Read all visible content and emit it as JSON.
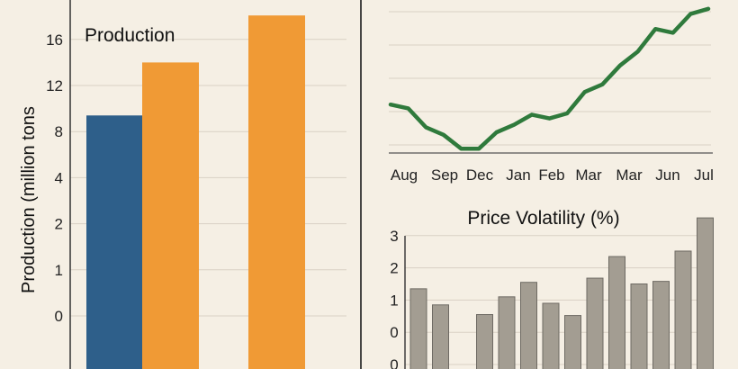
{
  "colors": {
    "background": "#f5efe4",
    "grid": "#d9d1c4",
    "bar_blue": "#2e5f8a",
    "bar_orange": "#f09a35",
    "line_green": "#2f7a3c",
    "bar_gray": "#a39d92",
    "bar_gray_edge": "#6e6a63",
    "divider": "#333333"
  },
  "chart_data": [
    {
      "id": "production",
      "type": "bar",
      "title": "Production",
      "ylabel": "Production (million tons",
      "y_tick_labels": [
        "0",
        "1",
        "2",
        "4",
        "8",
        "12",
        "16"
      ],
      "y_tick_levels": [
        0,
        1,
        2,
        3,
        4,
        5,
        6
      ],
      "bars": [
        {
          "level": 4.35,
          "color": "blue"
        },
        {
          "level": 5.5,
          "color": "orange"
        },
        {
          "level": 6.52,
          "color": "orange"
        }
      ],
      "grid": true
    },
    {
      "id": "price-line",
      "type": "line",
      "x_tick_labels": [
        "Aug",
        "Sep",
        "Dec",
        "Jan",
        "Feb",
        "Mar",
        "Mar",
        "Jun",
        "Jul"
      ],
      "values": [
        62,
        59,
        44,
        38,
        27,
        27,
        40,
        46,
        54,
        51,
        55,
        72,
        78,
        93,
        104,
        122,
        119,
        134,
        138
      ],
      "ylim": [
        25,
        140
      ],
      "grid": true
    },
    {
      "id": "price-volatility",
      "type": "bar",
      "title": "Price Volatility (%)",
      "y_tick_labels": [
        "0",
        "0",
        "1",
        "2",
        "3"
      ],
      "y_tick_levels": [
        0,
        1,
        2,
        3,
        4
      ],
      "values": [
        1.35,
        0.85,
        null,
        0.55,
        1.1,
        1.55,
        0.9,
        0.52,
        1.68,
        2.35,
        1.5,
        1.58,
        2.52,
        3.55
      ],
      "grid": true
    }
  ]
}
